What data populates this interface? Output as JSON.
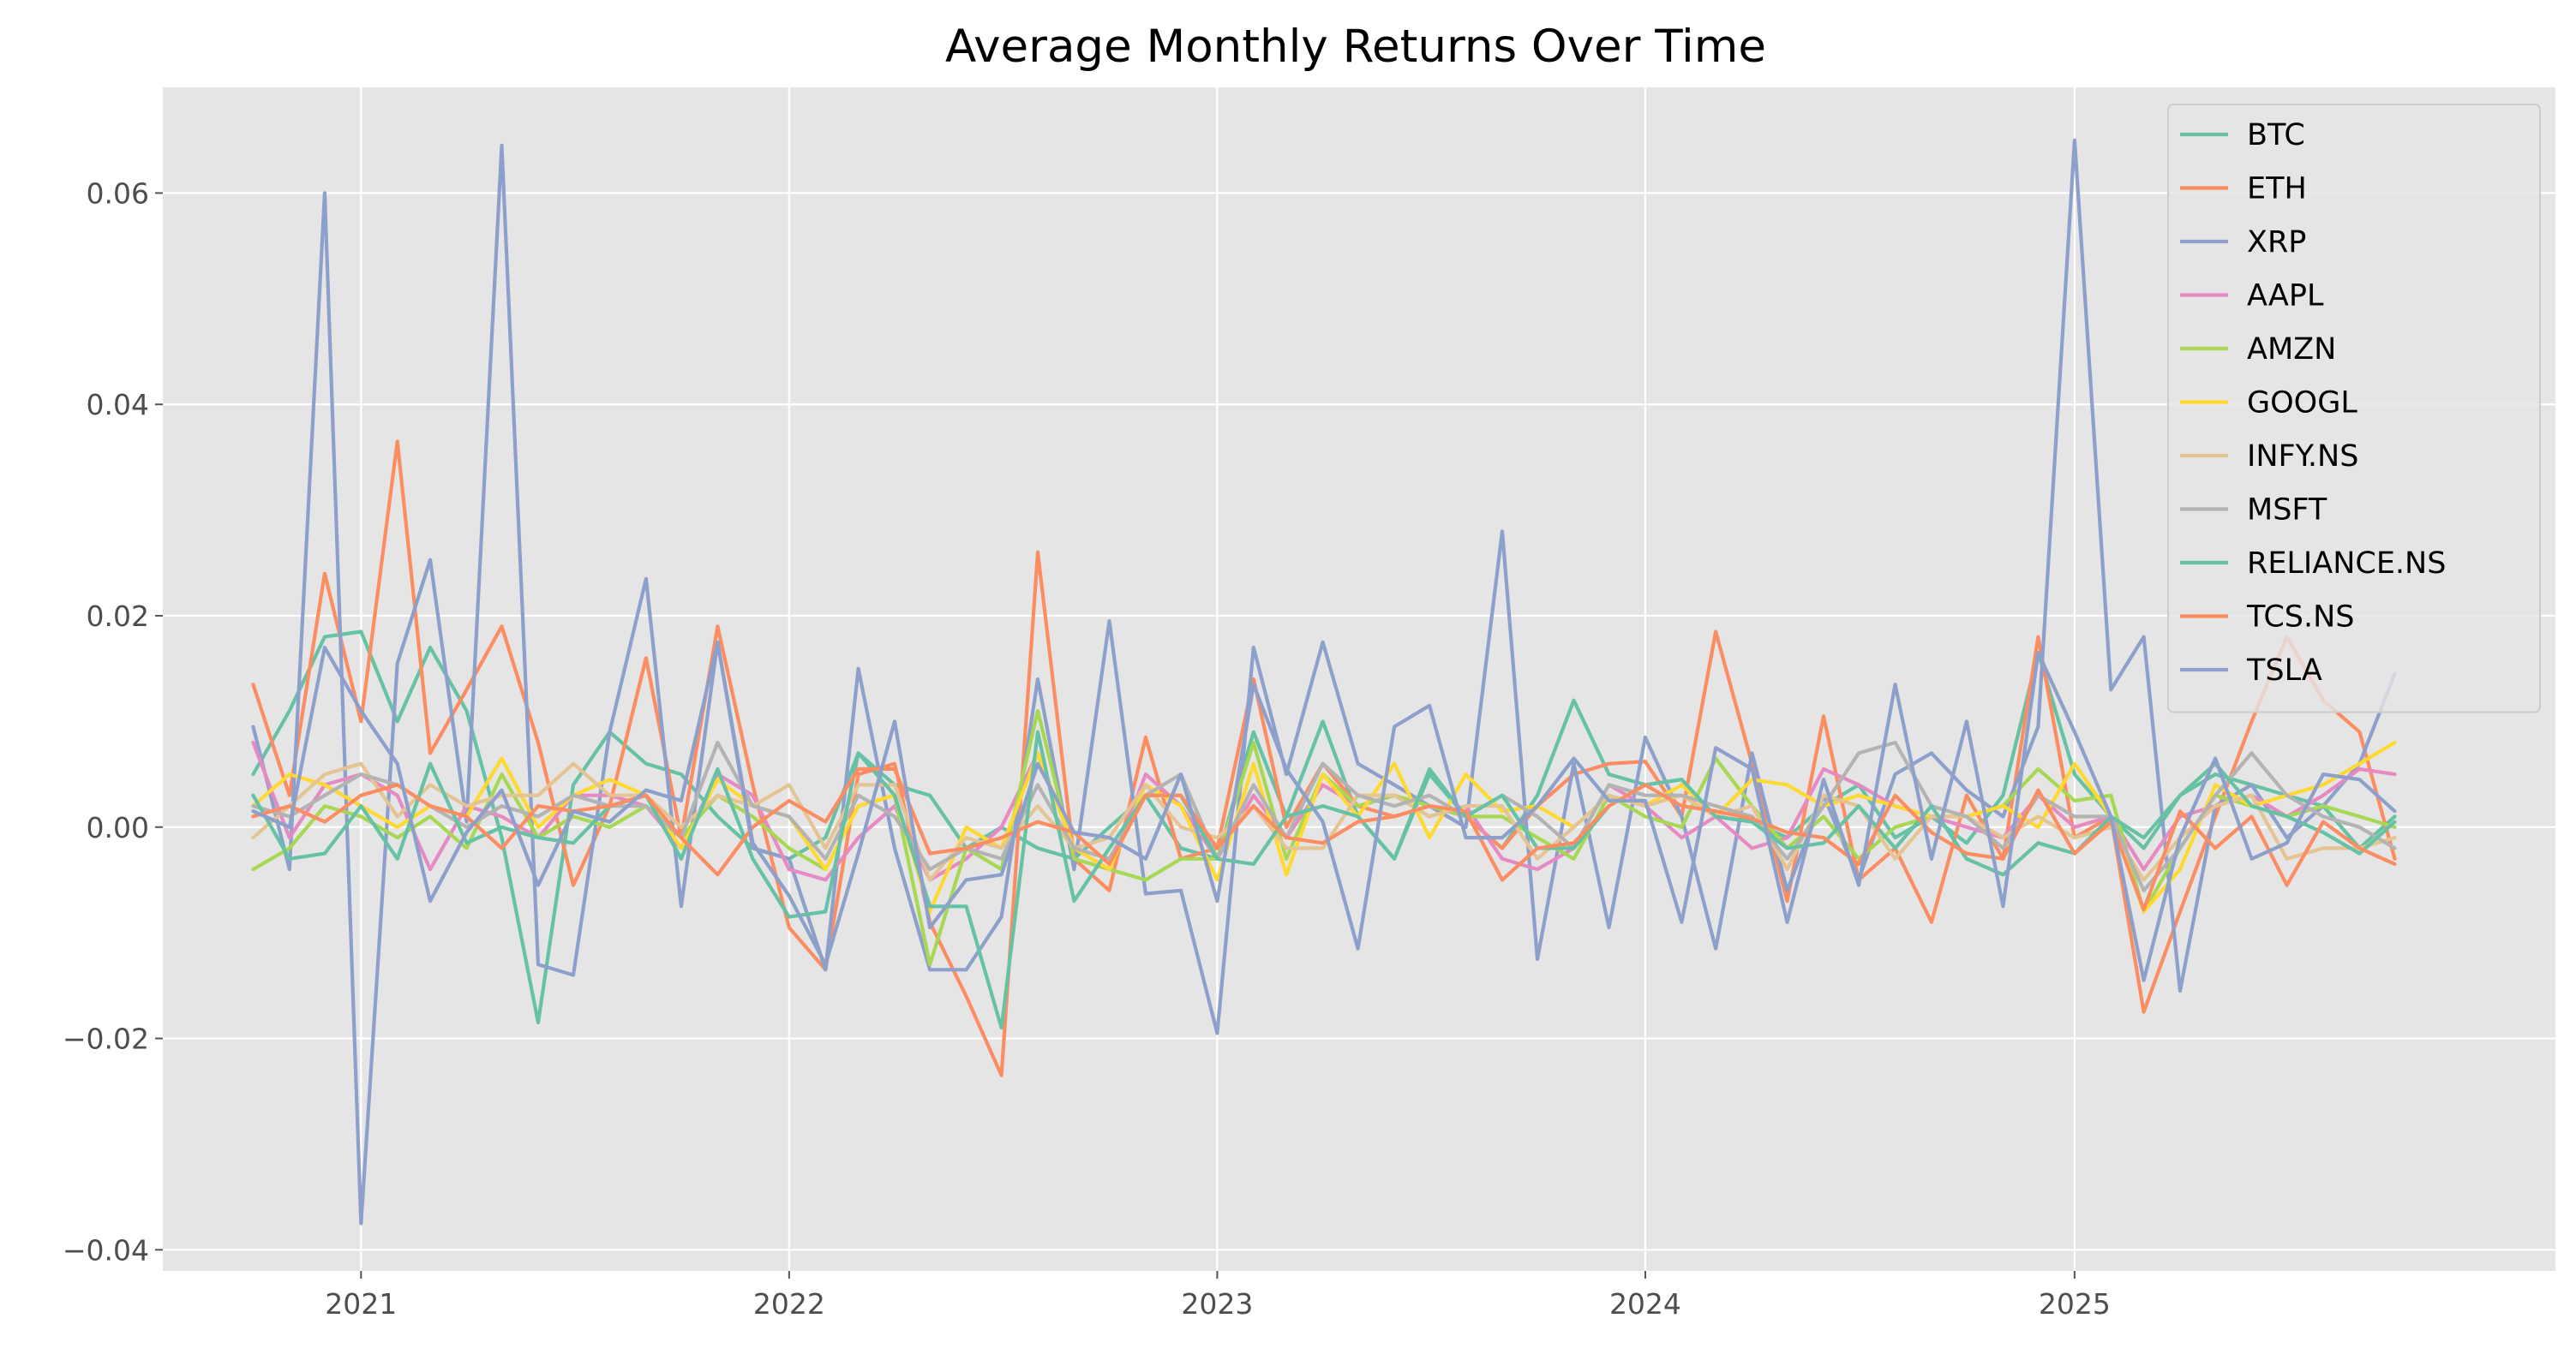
{
  "chart_data": {
    "type": "line",
    "title": "Average Monthly Returns Over Time",
    "xlabel": "",
    "ylabel": "",
    "x": [
      "2020-10",
      "2020-11",
      "2020-12",
      "2021-01",
      "2021-02",
      "2021-03",
      "2021-04",
      "2021-05",
      "2021-06",
      "2021-07",
      "2021-08",
      "2021-09",
      "2021-10",
      "2021-11",
      "2021-12",
      "2022-01",
      "2022-02",
      "2022-03",
      "2022-04",
      "2022-05",
      "2022-06",
      "2022-07",
      "2022-08",
      "2022-09",
      "2022-10",
      "2022-11",
      "2022-12",
      "2023-01",
      "2023-02",
      "2023-03",
      "2023-04",
      "2023-05",
      "2023-06",
      "2023-07",
      "2023-08",
      "2023-09",
      "2023-10",
      "2023-11",
      "2023-12",
      "2024-01",
      "2024-02",
      "2024-03",
      "2024-04",
      "2024-05",
      "2024-06",
      "2024-07",
      "2024-08",
      "2024-09",
      "2024-10",
      "2024-11",
      "2024-12",
      "2025-01",
      "2025-02",
      "2025-03",
      "2025-04",
      "2025-05",
      "2025-06",
      "2025-07",
      "2025-08",
      "2025-09",
      "2025-10"
    ],
    "xlim": [
      "2020-07-16",
      "2026-02-15"
    ],
    "ylim": [
      -0.042,
      0.07
    ],
    "x_ticks": [
      "2021",
      "2022",
      "2023",
      "2024",
      "2025"
    ],
    "x_tick_dates": [
      "2021-01-01",
      "2022-01-01",
      "2023-01-01",
      "2024-01-01",
      "2025-01-01"
    ],
    "y_ticks": [
      "−0.04",
      "−0.02",
      "0.00",
      "0.02",
      "0.04",
      "0.06"
    ],
    "y_tick_values": [
      -0.04,
      -0.02,
      0.0,
      0.02,
      0.04,
      0.06
    ],
    "grid": true,
    "legend_position": "top-right",
    "series": [
      {
        "name": "BTC",
        "color": "#66c2a5",
        "values": [
          0.005,
          0.011,
          0.018,
          0.0185,
          0.01,
          0.017,
          0.011,
          -0.001,
          -0.0185,
          0.004,
          0.009,
          0.006,
          0.005,
          0.001,
          -0.002,
          -0.003,
          -0.001,
          0.007,
          0.004,
          0.003,
          -0.002,
          0.0,
          -0.002,
          -0.003,
          0.0,
          0.003,
          -0.002,
          -0.003,
          0.009,
          0.001,
          0.01,
          0.001,
          -0.003,
          0.005,
          0.001,
          -0.002,
          0.003,
          0.012,
          0.005,
          0.004,
          0.0045,
          0.001,
          0.0005,
          -0.001,
          0.002,
          0.004,
          -0.001,
          0.001,
          -0.0015,
          0.003,
          0.0165,
          0.005,
          0.001,
          -0.002,
          0.003,
          0.005,
          0.004,
          0.003,
          0.002,
          -0.002,
          0.001
        ]
      },
      {
        "name": "ETH",
        "color": "#fc8d62",
        "values": [
          0.0135,
          0.003,
          0.024,
          0.01,
          0.0365,
          0.007,
          0.013,
          0.019,
          0.008,
          -0.0055,
          0.002,
          0.016,
          -0.001,
          0.019,
          0.004,
          -0.0095,
          -0.0135,
          0.005,
          0.006,
          -0.009,
          -0.016,
          -0.0235,
          0.026,
          -0.003,
          -0.006,
          0.0085,
          -0.003,
          -0.002,
          0.014,
          0.0,
          0.006,
          0.002,
          0.001,
          0.002,
          0.001,
          -0.002,
          0.002,
          0.005,
          0.006,
          0.0062,
          0.001,
          0.0185,
          0.006,
          -0.007,
          0.0105,
          -0.005,
          -0.002,
          -0.009,
          0.003,
          -0.003,
          0.018,
          -0.001,
          0.001,
          -0.0175,
          -0.008,
          0.001,
          0.01,
          0.018,
          0.012,
          0.009,
          -0.003
        ]
      },
      {
        "name": "XRP",
        "color": "#8da0cb",
        "values": [
          0.0095,
          -0.004,
          0.06,
          -0.0375,
          0.0155,
          0.0253,
          0.0005,
          0.0645,
          -0.013,
          -0.014,
          0.009,
          0.0235,
          -0.0075,
          0.0175,
          -0.002,
          -0.003,
          -0.0135,
          0.015,
          -0.002,
          -0.0135,
          -0.0135,
          -0.0085,
          0.014,
          -0.004,
          0.0195,
          -0.0063,
          -0.006,
          -0.0195,
          0.017,
          0.005,
          0.0175,
          0.006,
          0.004,
          0.002,
          0.0,
          0.028,
          -0.0125,
          0.006,
          -0.0095,
          0.0085,
          0.001,
          -0.0115,
          0.007,
          -0.006,
          0.003,
          -0.005,
          0.005,
          0.007,
          0.0035,
          0.001,
          0.0095,
          0.065,
          0.013,
          0.018,
          -0.0155,
          0.002,
          0.004,
          -0.001,
          0.002,
          0.006,
          0.0145
        ]
      },
      {
        "name": "AAPL",
        "color": "#e78ac3",
        "values": [
          0.008,
          -0.001,
          0.004,
          0.005,
          0.003,
          -0.004,
          0.002,
          0.001,
          -0.001,
          0.003,
          0.003,
          0.002,
          -0.002,
          0.005,
          0.003,
          -0.004,
          -0.005,
          -0.001,
          0.002,
          -0.005,
          -0.003,
          0.0,
          0.007,
          -0.002,
          -0.004,
          0.005,
          0.002,
          -0.003,
          0.003,
          -0.001,
          0.004,
          0.002,
          0.003,
          0.001,
          0.002,
          -0.003,
          -0.004,
          -0.002,
          0.004,
          0.002,
          -0.001,
          0.001,
          -0.002,
          -0.001,
          0.0055,
          0.004,
          0.002,
          0.001,
          0.0,
          -0.001,
          0.003,
          0.0,
          0.001,
          -0.004,
          0.001,
          0.002,
          0.003,
          0.001,
          0.003,
          0.0055,
          0.005
        ]
      },
      {
        "name": "AMZN",
        "color": "#a6d854",
        "values": [
          -0.004,
          -0.002,
          0.002,
          0.001,
          -0.001,
          0.001,
          -0.002,
          0.005,
          -0.001,
          0.001,
          0.0,
          0.002,
          -0.001,
          0.003,
          0.001,
          -0.002,
          -0.004,
          0.002,
          0.003,
          -0.013,
          -0.002,
          -0.004,
          0.011,
          -0.003,
          -0.004,
          -0.005,
          -0.003,
          -0.003,
          0.008,
          -0.003,
          0.005,
          0.002,
          0.003,
          0.002,
          0.001,
          0.001,
          -0.001,
          -0.003,
          0.003,
          0.001,
          0.0,
          0.0065,
          0.002,
          -0.002,
          0.001,
          -0.003,
          0.0,
          0.001,
          0.001,
          0.002,
          0.0055,
          0.0025,
          0.003,
          -0.008,
          -0.002,
          0.003,
          0.002,
          0.001,
          0.002,
          0.001,
          0.0
        ]
      },
      {
        "name": "GOOGL",
        "color": "#ffd92f",
        "values": [
          0.002,
          0.005,
          0.004,
          0.002,
          0.0,
          0.002,
          0.001,
          0.0065,
          0.0,
          0.003,
          0.0045,
          0.003,
          -0.002,
          0.0045,
          0.002,
          0.001,
          -0.004,
          0.002,
          0.003,
          -0.008,
          0.0,
          -0.002,
          0.007,
          -0.002,
          -0.004,
          0.004,
          0.002,
          -0.005,
          0.006,
          -0.0045,
          0.005,
          0.001,
          0.006,
          -0.001,
          0.005,
          0.0015,
          0.002,
          0.0,
          0.003,
          0.002,
          0.004,
          0.001,
          0.0045,
          0.004,
          0.002,
          0.003,
          0.002,
          0.001,
          0.001,
          0.002,
          0.0,
          0.006,
          0.001,
          -0.008,
          -0.004,
          0.004,
          0.002,
          0.003,
          0.004,
          0.006,
          0.008
        ]
      },
      {
        "name": "INFY.NS",
        "color": "#e5c494",
        "values": [
          -0.001,
          0.002,
          0.005,
          0.006,
          0.001,
          0.004,
          0.002,
          0.003,
          0.003,
          0.006,
          0.003,
          0.003,
          0.0,
          0.003,
          0.002,
          0.004,
          -0.002,
          0.004,
          0.004,
          -0.005,
          -0.001,
          -0.002,
          0.002,
          -0.002,
          -0.001,
          0.004,
          0.0,
          -0.001,
          0.002,
          -0.002,
          -0.002,
          0.003,
          0.003,
          0.001,
          0.002,
          0.002,
          -0.003,
          0.0,
          0.003,
          0.002,
          0.003,
          0.001,
          0.002,
          -0.004,
          0.003,
          0.002,
          -0.003,
          0.001,
          0.001,
          -0.001,
          0.001,
          -0.001,
          0.0,
          -0.005,
          -0.001,
          0.002,
          0.003,
          -0.003,
          -0.002,
          -0.002,
          -0.001
        ]
      },
      {
        "name": "MSFT",
        "color": "#b3b3b3",
        "values": [
          0.002,
          0.001,
          0.003,
          0.005,
          0.004,
          0.002,
          0.0,
          0.002,
          0.001,
          0.003,
          0.002,
          0.002,
          -0.001,
          0.008,
          0.002,
          0.001,
          -0.003,
          0.003,
          0.001,
          -0.004,
          -0.002,
          -0.003,
          0.004,
          -0.002,
          -0.003,
          0.003,
          0.005,
          -0.003,
          0.004,
          -0.001,
          0.006,
          0.003,
          0.002,
          0.003,
          0.001,
          0.003,
          0.001,
          -0.002,
          0.004,
          0.003,
          0.003,
          0.002,
          0.001,
          -0.003,
          0.002,
          0.007,
          0.008,
          0.002,
          0.001,
          -0.002,
          0.003,
          0.001,
          0.001,
          -0.006,
          -0.002,
          0.003,
          0.007,
          0.003,
          0.001,
          0.0,
          -0.002
        ]
      },
      {
        "name": "RELIANCE.NS",
        "color": "#66c2a5",
        "values": [
          0.003,
          -0.003,
          -0.0025,
          0.002,
          -0.003,
          0.006,
          -0.0015,
          0.0,
          -0.001,
          -0.0015,
          0.002,
          0.003,
          -0.003,
          0.0055,
          -0.003,
          -0.0085,
          -0.008,
          0.007,
          0.003,
          -0.0075,
          -0.0075,
          -0.019,
          0.009,
          -0.007,
          -0.002,
          0.003,
          0.003,
          -0.003,
          -0.0035,
          0.001,
          0.002,
          0.001,
          -0.003,
          0.0055,
          0.001,
          0.003,
          -0.002,
          -0.002,
          0.002,
          0.004,
          0.0045,
          0.001,
          0.0005,
          -0.002,
          -0.0015,
          0.002,
          -0.002,
          0.002,
          -0.003,
          -0.0045,
          -0.0015,
          -0.0025,
          0.001,
          -0.001,
          0.003,
          0.006,
          0.002,
          0.001,
          -0.0005,
          -0.0025,
          0.0005
        ]
      },
      {
        "name": "TCS.NS",
        "color": "#fc8d62",
        "values": [
          0.001,
          0.002,
          0.0005,
          0.003,
          0.004,
          0.002,
          0.001,
          -0.002,
          0.002,
          0.0015,
          0.002,
          0.003,
          -0.001,
          -0.0045,
          0.0,
          0.0025,
          0.0005,
          0.0055,
          0.0055,
          -0.0025,
          -0.002,
          -0.001,
          0.0005,
          -0.0005,
          -0.0035,
          0.003,
          0.003,
          -0.002,
          0.002,
          -0.001,
          -0.0015,
          0.0005,
          0.001,
          0.002,
          0.0015,
          -0.005,
          -0.002,
          -0.0015,
          0.002,
          0.004,
          0.002,
          0.0015,
          0.0008,
          -0.0005,
          -0.001,
          -0.0035,
          0.003,
          -0.0005,
          -0.0025,
          -0.003,
          0.0035,
          -0.0025,
          0.0005,
          -0.0078,
          0.0015,
          -0.002,
          0.001,
          -0.0055,
          0.0005,
          -0.002,
          -0.0035
        ]
      },
      {
        "name": "TSLA",
        "color": "#8da0cb",
        "values": [
          0.0015,
          0.0,
          0.017,
          0.011,
          0.006,
          -0.007,
          -0.0005,
          0.0035,
          -0.0055,
          0.0015,
          0.0005,
          0.0035,
          0.0025,
          0.0175,
          -0.0015,
          -0.0065,
          -0.013,
          -0.0025,
          0.01,
          -0.0095,
          -0.005,
          -0.0045,
          0.006,
          -0.0005,
          -0.001,
          -0.003,
          0.005,
          -0.007,
          0.0135,
          0.0055,
          0.0005,
          -0.0115,
          0.0095,
          0.0115,
          -0.001,
          -0.001,
          0.002,
          0.0065,
          0.0025,
          0.0025,
          -0.009,
          0.0075,
          0.0055,
          -0.009,
          0.0045,
          -0.0055,
          0.0135,
          -0.003,
          0.01,
          -0.0075,
          0.0165,
          0.009,
          0.001,
          -0.0145,
          -0.001,
          0.0065,
          -0.003,
          -0.0015,
          0.005,
          0.0045,
          0.0015
        ]
      }
    ]
  }
}
